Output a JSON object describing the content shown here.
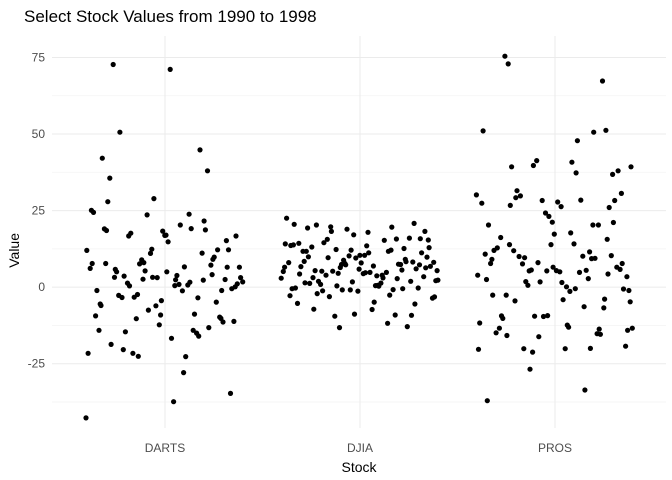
{
  "chart_data": {
    "type": "scatter",
    "title": "Select Stock Values from 1990 to 1998",
    "xlabel": "Stock",
    "ylabel": "Value",
    "categories": [
      "DARTS",
      "DJIA",
      "PROS"
    ],
    "ylim": [
      -46,
      82
    ],
    "yticks": [
      -25,
      0,
      25,
      50,
      75
    ],
    "ytick_labels": [
      "-25",
      "0",
      "25",
      "50",
      "75"
    ],
    "grid": true,
    "series": [
      {
        "category": "DARTS",
        "values": [
          -42.7,
          -27.9,
          -20.4,
          -10.2,
          -9.1,
          -5.5,
          -3.5,
          -2.4,
          0.1,
          0.5,
          3.2,
          4.1,
          12.4,
          25.1,
          23.8,
          16.7,
          15.2,
          17.0,
          7.7,
          2.3,
          2.6,
          3.1,
          20.3,
          50.6,
          12.2,
          3.1,
          -1.1,
          -8.8,
          -3.3,
          -0.5,
          -16.7,
          -18.7,
          -13.2,
          -7.5,
          -21.6,
          -22.7,
          -14.6,
          -11.4,
          18.3,
          42.1,
          44.8,
          7.6,
          1.1,
          3.8,
          5.0,
          9.8,
          28.9,
          24.4,
          19.1,
          17.6,
          12.2,
          14.8,
          27.9,
          18.7,
          5.3,
          1.7,
          -1.2,
          -3.4,
          -9.8,
          -12.3,
          -14.1,
          -15.0,
          -10.3,
          -11.2,
          -37.4,
          72.7,
          7.2,
          11.0,
          6.1,
          0.7,
          1.3,
          2.5,
          16.9,
          19.0,
          11.1,
          8.9,
          6.5,
          0.9,
          -2.7,
          -4.9,
          -6.1,
          -9.4,
          -14.1,
          -21.6,
          -34.7,
          71.1,
          35.6,
          38.0,
          23.6,
          12.0,
          6.6,
          3.6,
          -1.1,
          -4.4,
          -6.0,
          -16.0,
          -22.6,
          16.7,
          2.4,
          5.8,
          9.1,
          3.2,
          7.7,
          1.6,
          0.4,
          6.5,
          5.0,
          18.5,
          21.6,
          8.0
        ]
      },
      {
        "category": "DJIA",
        "values": [
          -13.2,
          5.4,
          3.7,
          20.3,
          20.8,
          17.1,
          13.8,
          12.1,
          19.7,
          15.4,
          17.9,
          19.3,
          9.1,
          7.7,
          6.5,
          3.9,
          5.2,
          7.3,
          5.9,
          14.3,
          15.7,
          12.3,
          8.1,
          6.9,
          3.1,
          1.9,
          -0.9,
          -2.8,
          -11.8,
          15.6,
          18.2,
          10.4,
          8.4,
          5.6,
          7.4,
          2.9,
          0.3,
          1.9,
          6.0,
          9.5,
          -0.3,
          -0.8,
          5.2,
          6.8,
          4.8,
          1.2,
          -12.9,
          18.9,
          22.5,
          15.3,
          14.5,
          11.2,
          7.9,
          6.7,
          7.5,
          4.5,
          2.1,
          0.5,
          5.4,
          8.2,
          1.7,
          -0.5,
          -2.6,
          -3.1,
          9.8,
          13.5,
          11.7,
          12.6,
          8.8,
          5.1,
          1.3,
          0.9,
          -0.3,
          -1.3,
          -5.3,
          -9.1,
          -9.5,
          -3.6,
          -7.3,
          13.1,
          16.0,
          10.2,
          8.0,
          4.8,
          3.9,
          3.4,
          4.4,
          11.7,
          7.4,
          6.4,
          2.3,
          0.6,
          -2.1,
          -5.5,
          -8.8,
          20.5,
          19.6,
          18.2,
          12.9,
          11.2,
          9.9,
          8.3,
          7.3,
          14.1,
          3.0,
          -1.2,
          15.8,
          10.4,
          4.3,
          2.8,
          0.4,
          -3.2,
          -4.9,
          -7.2,
          -9.2,
          12.1,
          13.6,
          11.7,
          9.6,
          6.3,
          4.7,
          1.4,
          -0.5,
          -0.9
        ]
      },
      {
        "category": "PROS",
        "values": [
          20.3,
          -21.2,
          -4.8,
          -1.4,
          13.9,
          15.6,
          5.3,
          2.5,
          -6.4,
          -20.1,
          30.6,
          26.3,
          16.2,
          20.3,
          8.0,
          3.9,
          -0.5,
          -4.5,
          36.8,
          21.2,
          9.1,
          11.5,
          5.3,
          3.4,
          0.1,
          -2.6,
          -6.8,
          -9.6,
          51.0,
          28.4,
          29.8,
          38.0,
          27.8,
          12.8,
          9.4,
          -9.5,
          -13.4,
          40.8,
          39.3,
          26.0,
          23.1,
          20.3,
          5.5,
          1.8,
          -0.6,
          -4.1,
          -10.2,
          -15.4,
          1.7,
          -11.7,
          47.8,
          31.5,
          28.3,
          17.3,
          12.0,
          9.3,
          5.6,
          -1.1,
          -13.1,
          72.9,
          51.2,
          24.2,
          10.8,
          10.1,
          7.6,
          5.8,
          5.0,
          -13.4,
          -15.2,
          41.3,
          30.1,
          14.1,
          11.9,
          10.3,
          13.9,
          7.7,
          2.8,
          0.6,
          -19.3,
          -20.1,
          75.4,
          67.3,
          28.3,
          27.4,
          4.8,
          10.0,
          6.5,
          5.4,
          -14.9,
          50.6,
          39.7,
          39.3,
          17.7,
          26.7,
          4.3,
          -9.3,
          -37.1,
          -33.6,
          9.6,
          7.7,
          1.5,
          -9.4,
          -13.7,
          -16.2,
          -20.3,
          37.3,
          29.2,
          21.1,
          6.5,
          -2.6,
          -20.0,
          -26.8,
          -14.1,
          -12.4,
          -15.8,
          -3.9
        ]
      }
    ]
  }
}
